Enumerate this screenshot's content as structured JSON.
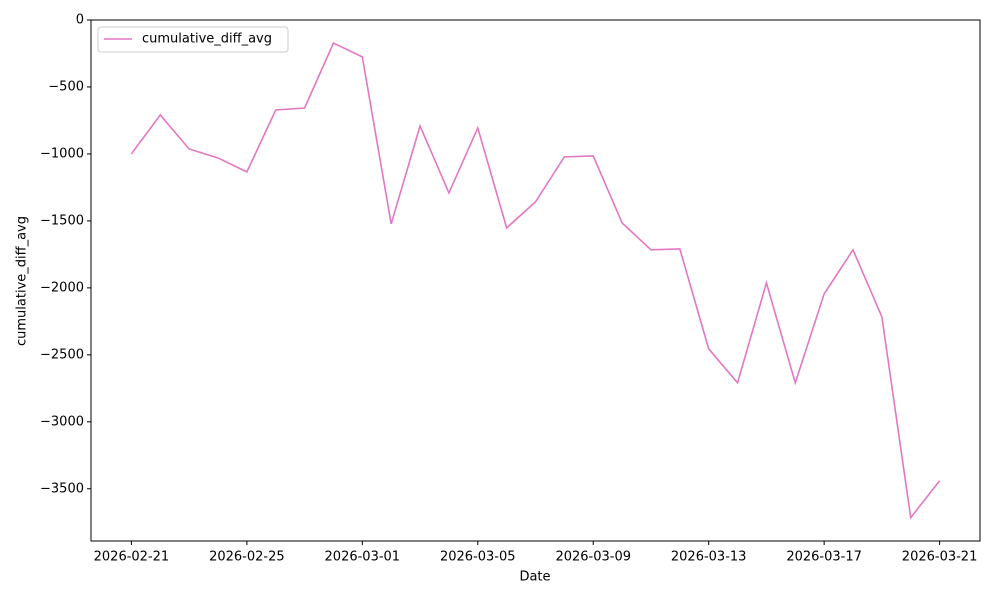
{
  "chart_data": {
    "type": "line",
    "x_label": "Date",
    "y_label": "cumulative_diff_avg",
    "x": [
      "2026-02-21",
      "2026-02-22",
      "2026-02-23",
      "2026-02-24",
      "2026-02-25",
      "2026-02-26",
      "2026-02-27",
      "2026-02-28",
      "2026-03-01",
      "2026-03-02",
      "2026-03-03",
      "2026-03-04",
      "2026-03-05",
      "2026-03-06",
      "2026-03-07",
      "2026-03-08",
      "2026-03-09",
      "2026-03-10",
      "2026-03-11",
      "2026-03-12",
      "2026-03-13",
      "2026-03-14",
      "2026-03-15",
      "2026-03-16",
      "2026-03-17",
      "2026-03-18",
      "2026-03-19",
      "2026-03-20",
      "2026-03-21"
    ],
    "series": [
      {
        "name": "cumulative_diff_avg",
        "color": "#e377c2",
        "values": [
          -1000,
          -709,
          -963,
          -1030,
          -1134,
          -672,
          -657,
          -172,
          -276,
          -1522,
          -791,
          -1291,
          -806,
          -1552,
          -1358,
          -1022,
          -1015,
          -1515,
          -1716,
          -1709,
          -2455,
          -2709,
          -1963,
          -2709,
          -2045,
          -1716,
          -2216,
          -3716,
          -3440
        ]
      }
    ],
    "ylim": [
      -3890,
      0
    ],
    "yticks": [
      {
        "value": -3500,
        "label": "−3500"
      },
      {
        "value": -3000,
        "label": "−3000"
      },
      {
        "value": -2500,
        "label": "−2500"
      },
      {
        "value": -2000,
        "label": "−2000"
      },
      {
        "value": -1500,
        "label": "−1500"
      },
      {
        "value": -1000,
        "label": "−1000"
      },
      {
        "value": -500,
        "label": "−500"
      },
      0
    ],
    "xticks": [
      "2026-02-21",
      "2026-02-25",
      "2026-03-01",
      "2026-03-05",
      "2026-03-09",
      "2026-03-13",
      "2026-03-17",
      "2026-03-21"
    ],
    "legend": "upper left",
    "grid": false
  }
}
